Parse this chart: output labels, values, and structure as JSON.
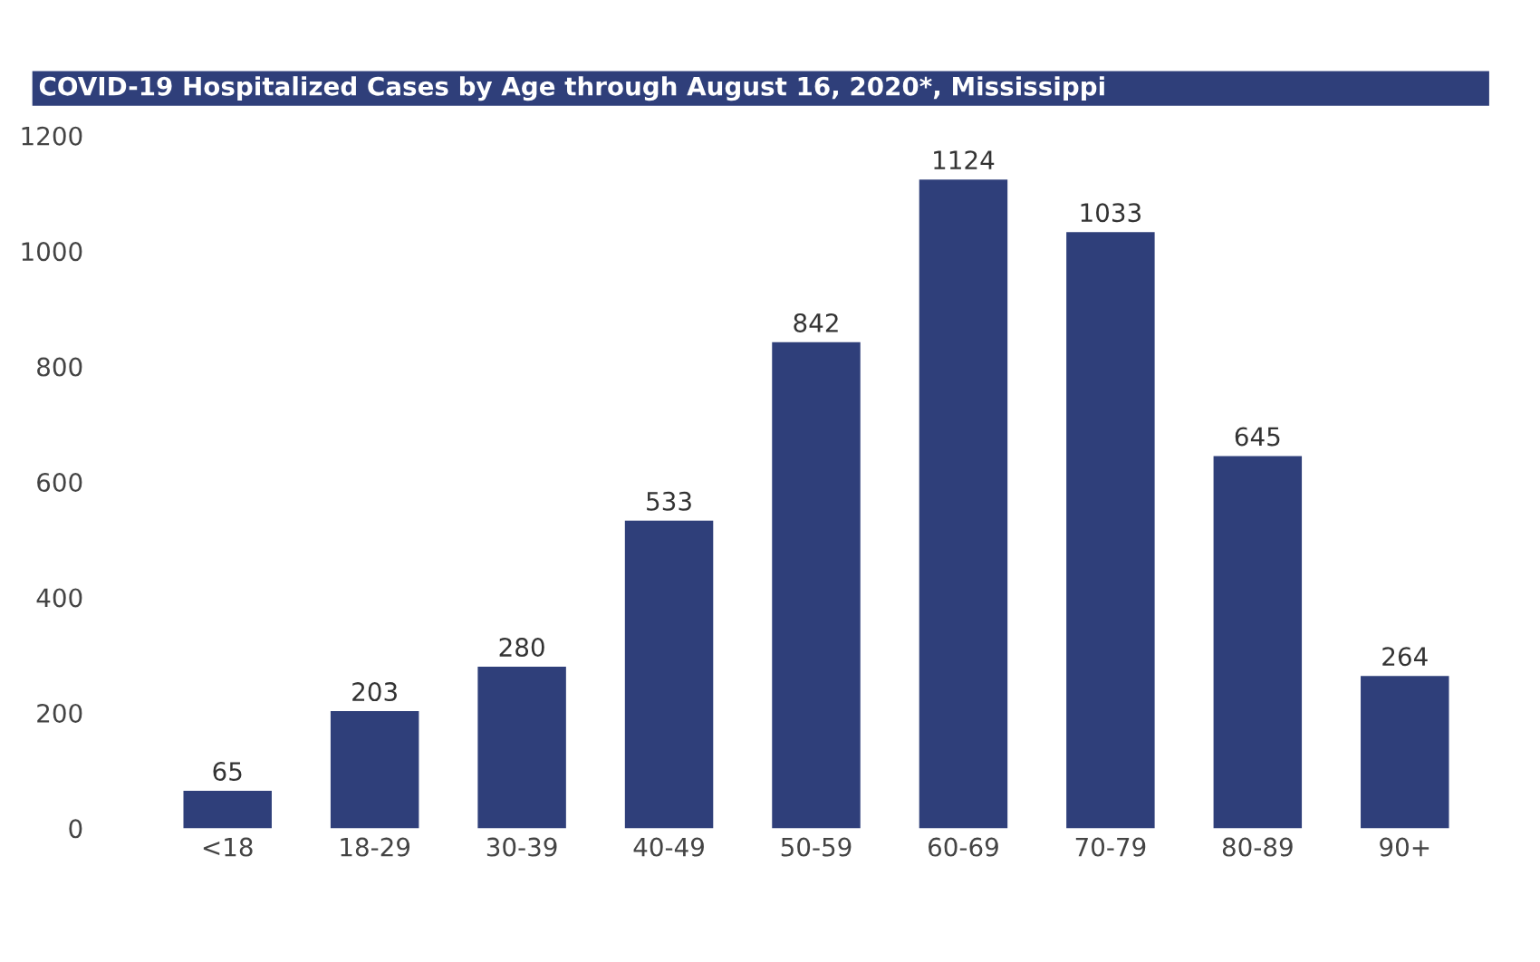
{
  "chart_data": {
    "type": "bar",
    "title": "COVID-19 Hospitalized Cases by Age through August 16, 2020*, Mississippi",
    "categories": [
      "<18",
      "18-29",
      "30-39",
      "40-49",
      "50-59",
      "60-69",
      "70-79",
      "80-89",
      "90+"
    ],
    "values": [
      65,
      203,
      280,
      533,
      842,
      1124,
      1033,
      645,
      264
    ],
    "color": "#2f3f7a",
    "ylim": [
      0,
      1200
    ],
    "yticks": [
      0,
      200,
      400,
      600,
      800,
      1000,
      1200
    ],
    "data_labels": true,
    "grid": false,
    "legend": false
  }
}
